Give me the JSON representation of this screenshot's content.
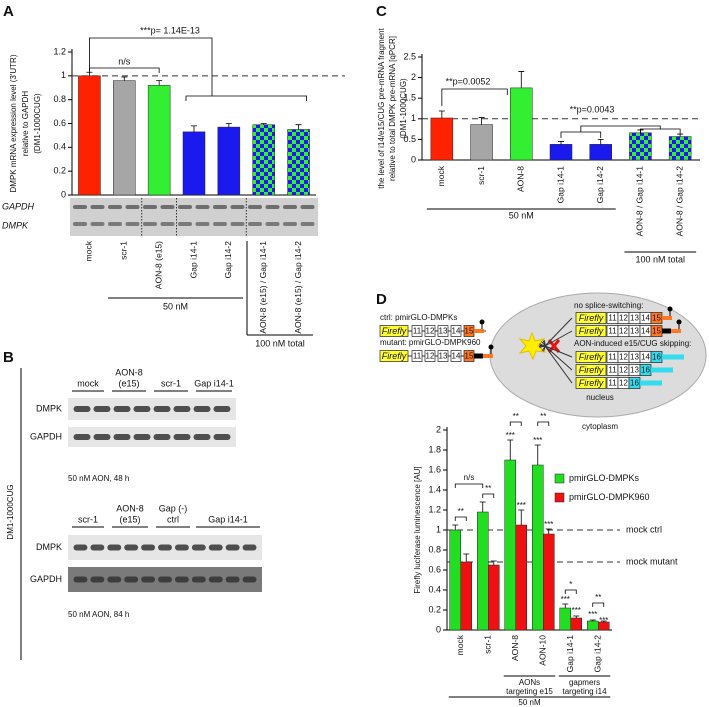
{
  "panel_letters": [
    "A",
    "B",
    "C",
    "D"
  ],
  "chart_data": [
    {
      "type": "bar",
      "y_label_lines": [
        "DMPK mRNA expression level (3'UTR)",
        "relative to GAPDH",
        "(DM1-1000CUG)"
      ],
      "categories": [
        "mock",
        "scr-1",
        "AON-8 (e15)",
        "Gap i14-1",
        "Gap i14-2",
        "AON-8 (e15) / Gap i14-1",
        "AON-8 (e15) / Gap i14-2"
      ],
      "values": [
        1.0,
        0.96,
        0.92,
        0.53,
        0.57,
        0.59,
        0.55
      ],
      "errors": [
        0.03,
        0.03,
        0.04,
        0.05,
        0.03,
        0.01,
        0.04
      ],
      "colors": [
        "#ff2200",
        "#a6a6a6",
        "#33ee33",
        "#1a1aee",
        "#1a1aee",
        "#1a1aee",
        "#1a1aee"
      ],
      "checkered": [
        false,
        false,
        false,
        false,
        false,
        true,
        true
      ],
      "pattern_color": "#33ee33",
      "ylim": [
        0,
        1.2
      ],
      "yticks": [
        0,
        0.2,
        0.4,
        0.6,
        0.8,
        1,
        1.2
      ],
      "reference_line": 1,
      "annotations": [
        "***p= 1.14E-13",
        "n/s"
      ],
      "gel_labels": [
        "GAPDH",
        "DMPK"
      ],
      "groups": [
        "50 nM",
        "100 nM total"
      ]
    },
    {
      "type": "bar",
      "y_label_lines": [
        "the level of i14/e15/CUG pre-mRNA fragment",
        "relative to total DMPK pre-mRNA [qPCR]",
        "(DM1-1000CUG)"
      ],
      "categories": [
        "mock",
        "scr-1",
        "AON-8",
        "Gap i14-1",
        "Gap i14-2",
        "AON-8 / Gap i14-1",
        "AON-8 / Gap i14-2"
      ],
      "values": [
        1.02,
        0.86,
        1.75,
        0.38,
        0.38,
        0.66,
        0.57
      ],
      "errors": [
        0.17,
        0.17,
        0.4,
        0.07,
        0.12,
        0.07,
        0.06
      ],
      "colors": [
        "#ff2200",
        "#a6a6a6",
        "#33ee33",
        "#1a1aee",
        "#1a1aee",
        "#1a1aee",
        "#1a1aee"
      ],
      "checkered": [
        false,
        false,
        false,
        false,
        false,
        true,
        true
      ],
      "pattern_color": "#33ee33",
      "ylim": [
        0,
        2.5
      ],
      "yticks": [
        0,
        0.5,
        1,
        1.5,
        2,
        2.5
      ],
      "reference_line": 1,
      "annotations": [
        "**p=0.0052",
        "**p=0.0043"
      ],
      "groups": [
        "50 nM",
        "100 nM total"
      ]
    },
    {
      "type": "bar",
      "y_label": "Firefly luciferase luminescence [AU]",
      "categories": [
        "mock",
        "scr-1",
        "AON-8",
        "AON-10",
        "Gap i14-1",
        "Gap i14-2"
      ],
      "series": [
        {
          "name": "pmirGLO-DMPKs",
          "color": "#22dd22",
          "values": [
            1.0,
            1.18,
            1.7,
            1.65,
            0.22,
            0.09
          ],
          "errors": [
            0.05,
            0.1,
            0.2,
            0.2,
            0.04,
            0.01
          ]
        },
        {
          "name": "pmirGLO-DMPK960",
          "color": "#ee1111",
          "values": [
            0.68,
            0.65,
            1.05,
            0.96,
            0.12,
            0.08
          ],
          "errors": [
            0.08,
            0.04,
            0.15,
            0.05,
            0.02,
            0.01
          ]
        }
      ],
      "ylim": [
        0,
        2
      ],
      "yticks": [
        0,
        0.2,
        0.4,
        0.6,
        0.8,
        1,
        1.2,
        1.4,
        1.6,
        1.8,
        2
      ],
      "legend": "right",
      "reference_lines": [
        {
          "label": "mock ctrl",
          "value": 1,
          "color": "#22dd22"
        },
        {
          "label": "mock mutant",
          "value": 0.68,
          "color": "#ee1111"
        }
      ],
      "annotations": [
        "n/s",
        "**",
        "**",
        "***",
        "**",
        "***",
        "***",
        "**",
        "***",
        "***",
        "*",
        "***",
        "***",
        "**",
        "***"
      ],
      "groups": [
        [
          "AONs",
          "targeting e15"
        ],
        [
          "gapmers",
          "targeting i14"
        ],
        [
          "50 nM"
        ]
      ]
    }
  ],
  "blots": {
    "side_label": "DM1-1000CUG",
    "blots": [
      {
        "lanes": [
          [
            "mock"
          ],
          [
            "AON-8",
            "(e15)"
          ],
          [
            "scr-1"
          ],
          [
            "Gap i14-1"
          ]
        ],
        "rows": [
          "DMPK",
          "GAPDH"
        ],
        "caption": "50 nM AON, 48 h"
      },
      {
        "lanes": [
          [
            "scr-1"
          ],
          [
            "AON-8",
            "(e15)"
          ],
          [
            "Gap (-)",
            "ctrl"
          ],
          [
            "Gap i14-1"
          ]
        ],
        "rows": [
          "DMPK",
          "GAPDH"
        ],
        "caption": "50 nM AON, 84 h"
      }
    ]
  },
  "diagram": {
    "constructs": [
      {
        "label": "ctrl: pmirGLO-DMPKs",
        "exons": [
          "Firefly",
          "11",
          "12",
          "13",
          "14",
          "15"
        ]
      },
      {
        "label": "mutant: pmirGLO-DMPK960",
        "exons": [
          "Firefly",
          "11",
          "12",
          "13",
          "14",
          "15"
        ]
      }
    ],
    "no_switch_label": "no splice-switching:",
    "skip_label": "AON-induced e15/CUG skipping:",
    "transcripts": [
      [
        "Firefly",
        "11",
        "12",
        "13",
        "14",
        "15"
      ],
      [
        "Firefly",
        "11",
        "12",
        "13",
        "14",
        "15"
      ],
      [
        "Firefly",
        "11",
        "12",
        "13",
        "14",
        "16"
      ],
      [
        "Firefly",
        "11",
        "12",
        "13",
        "16"
      ],
      [
        "Firefly",
        "11",
        "12",
        "16"
      ]
    ],
    "nucleus": "nucleus",
    "cytoplasm": "cytoplasm"
  }
}
